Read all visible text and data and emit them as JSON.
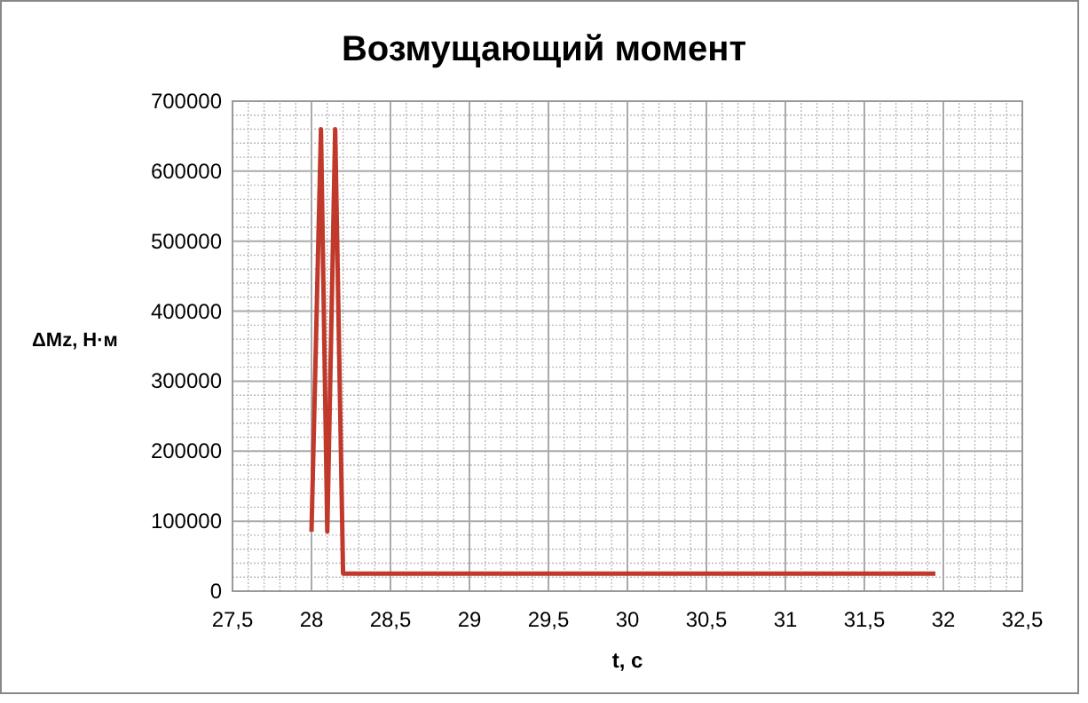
{
  "chart_data": {
    "type": "line",
    "title": "Возмущающий момент",
    "xlabel": "t, с",
    "ylabel": "ΔMz, Н·м",
    "x": [
      28.0,
      28.06,
      28.1,
      28.15,
      28.2,
      31.95
    ],
    "series": [
      {
        "color": "#c0392b",
        "values": [
          85000,
          660000,
          85000,
          660000,
          25000,
          25000
        ]
      }
    ],
    "xlim": [
      27.5,
      32.5
    ],
    "xticks": [
      {
        "value": 27.5,
        "label": "27,5"
      },
      28,
      {
        "value": 28.5,
        "label": "28,5"
      },
      29,
      {
        "value": 29.5,
        "label": "29,5"
      },
      30,
      {
        "value": 30.5,
        "label": "30,5"
      },
      31,
      {
        "value": 31.5,
        "label": "31,5"
      },
      32,
      {
        "value": 32.5,
        "label": "32,5"
      }
    ],
    "ylim": [
      0,
      700000
    ],
    "yticks": [
      0,
      100000,
      200000,
      300000,
      400000,
      500000,
      600000,
      700000
    ],
    "grid": true,
    "marker": "none",
    "line_style": "solid"
  }
}
